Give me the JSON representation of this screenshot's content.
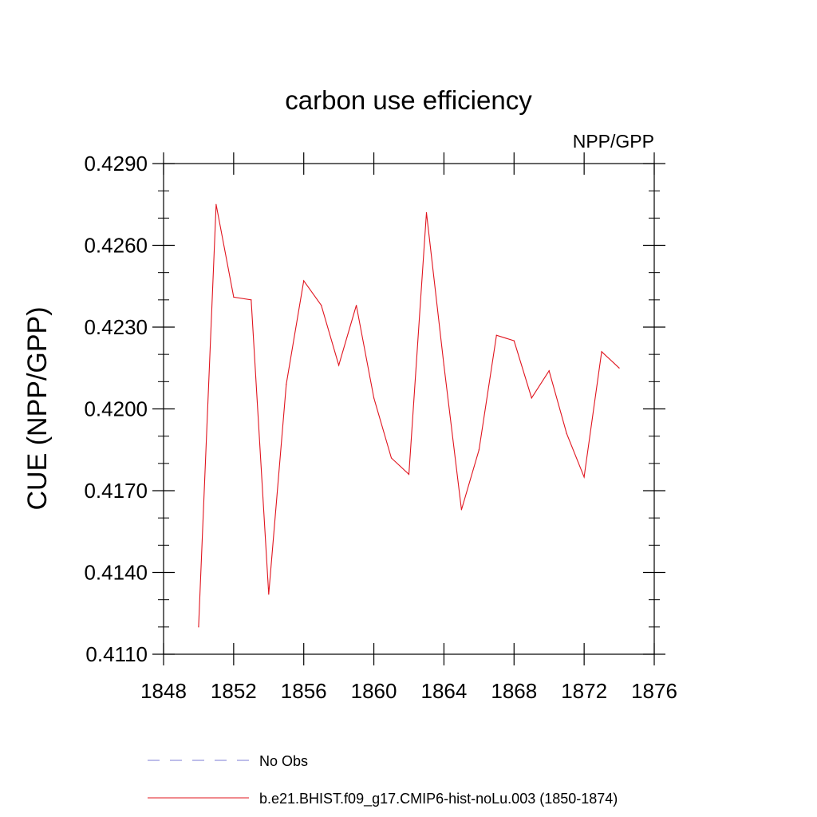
{
  "chart_data": {
    "type": "line",
    "title": "carbon use efficiency",
    "subtitle": "NPP/GPP",
    "xlabel": "",
    "ylabel": "CUE  (NPP/GPP)",
    "xlim": [
      1848,
      1876
    ],
    "ylim": [
      0.411,
      0.429
    ],
    "xticks": [
      1848,
      1852,
      1856,
      1860,
      1864,
      1868,
      1872,
      1876
    ],
    "xtick_labels": [
      "1848",
      "1852",
      "1856",
      "1860",
      "1864",
      "1868",
      "1872",
      "1876"
    ],
    "yticks": [
      0.411,
      0.414,
      0.417,
      0.42,
      0.423,
      0.426,
      0.429
    ],
    "ytick_labels": [
      "0.4110",
      "0.4140",
      "0.4170",
      "0.4200",
      "0.4230",
      "0.4260",
      "0.4290"
    ],
    "grid": false,
    "legend_position": "bottom",
    "series": [
      {
        "name": "No Obs",
        "color": "#7b7bd6",
        "style": "dashed",
        "x": [],
        "y": []
      },
      {
        "name": "b.e21.BHIST.f09_g17.CMIP6-hist-noLu.003 (1850-1874)",
        "color": "#e0141e",
        "style": "solid",
        "x": [
          1850,
          1851,
          1852,
          1853,
          1854,
          1855,
          1856,
          1857,
          1858,
          1859,
          1860,
          1861,
          1862,
          1863,
          1864,
          1865,
          1866,
          1867,
          1868,
          1869,
          1870,
          1871,
          1872,
          1873,
          1874
        ],
        "y": [
          0.412,
          0.4275,
          0.4241,
          0.424,
          0.4132,
          0.4209,
          0.4247,
          0.4238,
          0.4216,
          0.4238,
          0.4204,
          0.4182,
          0.4176,
          0.4272,
          0.4216,
          0.4163,
          0.4185,
          0.4227,
          0.4225,
          0.4204,
          0.4214,
          0.4191,
          0.4175,
          0.4221,
          0.4215
        ]
      }
    ]
  }
}
